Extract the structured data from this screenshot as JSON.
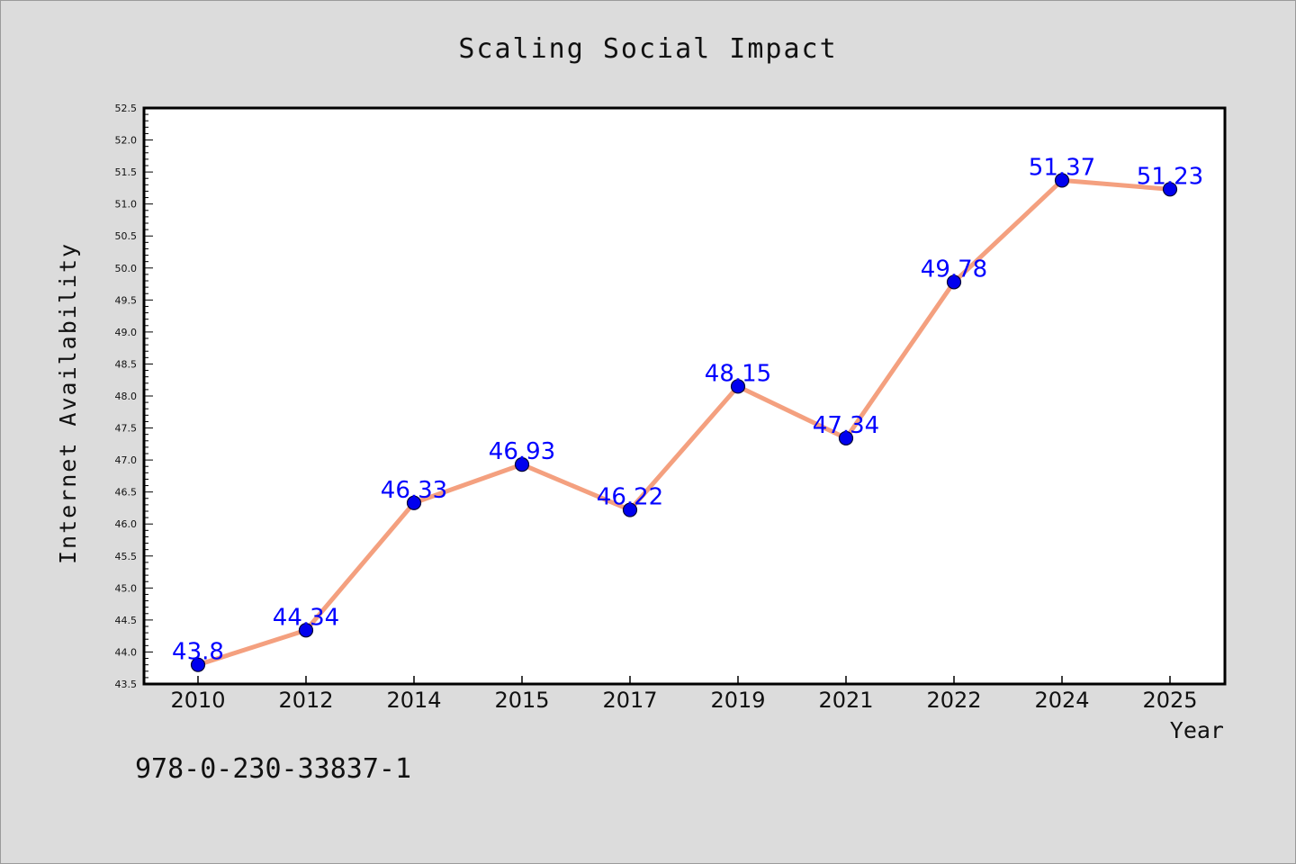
{
  "chart_data": {
    "type": "line",
    "title": "Scaling Social Impact",
    "xlabel": "Year",
    "ylabel": "Internet Availability",
    "categories": [
      "2010",
      "2012",
      "2014",
      "2015",
      "2017",
      "2019",
      "2021",
      "2022",
      "2024",
      "2025"
    ],
    "values": [
      43.8,
      44.34,
      46.33,
      46.93,
      46.22,
      48.15,
      47.34,
      49.78,
      51.37,
      51.23
    ],
    "data_labels": [
      "43.8",
      "44.34",
      "46.33",
      "46.93",
      "46.22",
      "48.15",
      "47.34",
      "49.78",
      "51.37",
      "51.23"
    ],
    "ylim": [
      43.5,
      52.5
    ],
    "y_major_ticks": [
      "43.5",
      "44.0",
      "44.5",
      "45.0",
      "45.5",
      "46.0",
      "46.5",
      "47.0",
      "47.5",
      "48.0",
      "48.5",
      "49.0",
      "49.5",
      "50.0",
      "50.5",
      "51.0",
      "51.5",
      "52.0",
      "52.5"
    ],
    "grid": false,
    "legend": "none",
    "colors": {
      "line": "#f4a07f",
      "marker": "#0000ee",
      "marker_edge": "#000033",
      "data_label": "#0000ff",
      "plot_background": "#ffffff",
      "page_background": "#dcdcdc"
    }
  },
  "footer_code": "978-0-230-33837-1"
}
